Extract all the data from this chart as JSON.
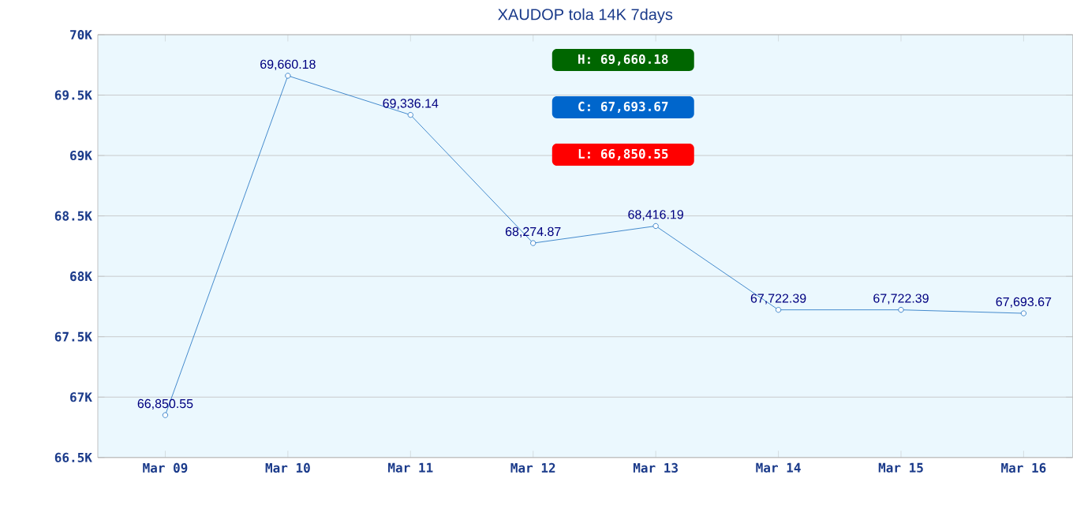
{
  "chart_data": {
    "type": "line",
    "title": "XAUDOP tola 14K 7days",
    "categories": [
      "Mar 09",
      "Mar 10",
      "Mar 11",
      "Mar 12",
      "Mar 13",
      "Mar 14",
      "Mar 15",
      "Mar 16"
    ],
    "values": [
      66850.55,
      69660.18,
      69336.14,
      68274.87,
      68416.19,
      67722.39,
      67722.39,
      67693.67
    ],
    "value_labels": [
      "66,850.55",
      "69,660.18",
      "69,336.14",
      "68,274.87",
      "68,416.19",
      "67,722.39",
      "67,722.39",
      "67,693.67"
    ],
    "color": "#1a6fc0",
    "marker": "circle",
    "line_style": "solid",
    "grid": "y",
    "ylim": [
      66500,
      70000
    ],
    "yticks": [
      {
        "value": 66500,
        "label": "66.5K"
      },
      {
        "value": 67000,
        "label": "67K"
      },
      {
        "value": 67500,
        "label": "67.5K"
      },
      {
        "value": 68000,
        "label": "68K"
      },
      {
        "value": 68500,
        "label": "68.5K"
      },
      {
        "value": 69000,
        "label": "69K"
      },
      {
        "value": 69500,
        "label": "69.5K"
      },
      {
        "value": 70000,
        "label": "70K"
      }
    ],
    "annotations": [
      "H: 69,660.18",
      "C: 67,693.67",
      "L: 66,850.55"
    ]
  }
}
